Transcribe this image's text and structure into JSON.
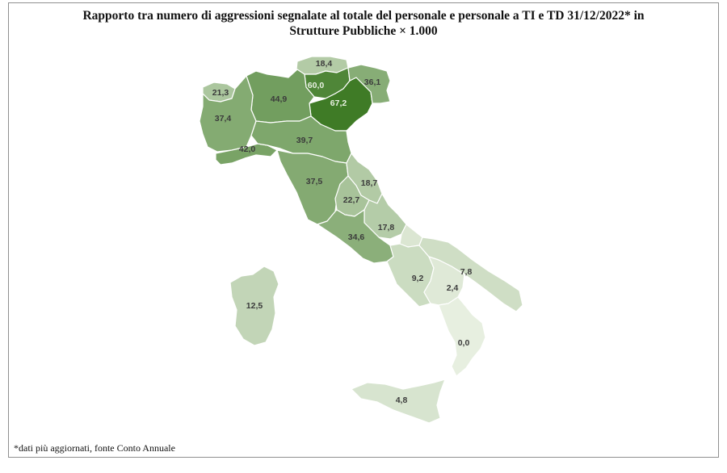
{
  "title": {
    "line1": "Rapporto tra numero di aggressioni segnalate al totale del personale e personale a TI e TD 31/12/2022* in",
    "line2": "Strutture Pubbliche × 1.000"
  },
  "footnote": "*dati più aggiornati, fonte Conto Annuale",
  "color_scale": {
    "low": "#e7efe0",
    "high": "#3f7b26"
  },
  "map_data": {
    "type": "choropleth",
    "regions": [
      {
        "name": "Trentino-Alto Adige (Bolzano)",
        "label": "18,4",
        "value": 18.4
      },
      {
        "name": "Trentino-Alto Adige (Trento)",
        "label": "60,0",
        "value": 60.0
      },
      {
        "name": "Veneto",
        "label": "67,2",
        "value": 67.2
      },
      {
        "name": "Friuli-Venezia Giulia",
        "label": "36,1",
        "value": 36.1
      },
      {
        "name": "Valle d'Aosta",
        "label": "21,3",
        "value": 21.3
      },
      {
        "name": "Lombardia",
        "label": "44,9",
        "value": 44.9
      },
      {
        "name": "Piemonte",
        "label": "37,4",
        "value": 37.4
      },
      {
        "name": "Liguria",
        "label": "42,0",
        "value": 42.0
      },
      {
        "name": "Emilia-Romagna",
        "label": "39,7",
        "value": 39.7
      },
      {
        "name": "Toscana",
        "label": "37,5",
        "value": 37.5
      },
      {
        "name": "Marche",
        "label": "18,7",
        "value": 18.7
      },
      {
        "name": "Umbria",
        "label": "22,7",
        "value": 22.7
      },
      {
        "name": "Abruzzo",
        "label": "17,8",
        "value": 17.8
      },
      {
        "name": "Lazio",
        "label": "34,6",
        "value": 34.6
      },
      {
        "name": "Molise",
        "label": "",
        "value": null
      },
      {
        "name": "Campania",
        "label": "9,2",
        "value": 9.2
      },
      {
        "name": "Puglia",
        "label": "7,8",
        "value": 7.8
      },
      {
        "name": "Basilicata",
        "label": "2,4",
        "value": 2.4
      },
      {
        "name": "Calabria",
        "label": "0,0",
        "value": 0.0
      },
      {
        "name": "Sardegna",
        "label": "12,5",
        "value": 12.5
      },
      {
        "name": "Sicilia",
        "label": "4,8",
        "value": 4.8
      }
    ]
  }
}
